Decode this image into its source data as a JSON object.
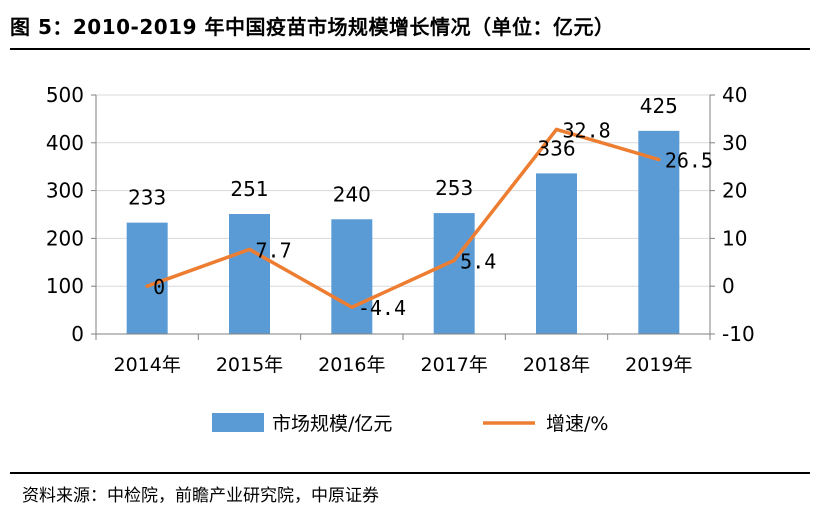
{
  "figure": {
    "title": "图 5：2010-2019 年中国疫苗市场规模增长情况（单位：亿元）",
    "source": "资料来源：中检院，前瞻产业研究院，中原证券"
  },
  "chart_data": {
    "type": "bar+line",
    "categories": [
      "2014年",
      "2015年",
      "2016年",
      "2017年",
      "2018年",
      "2019年"
    ],
    "series": [
      {
        "name": "市场规模/亿元",
        "type": "bar",
        "axis": "left",
        "color": "#5B9BD5",
        "values": [
          233,
          251,
          240,
          253,
          336,
          425
        ],
        "labels": [
          "233",
          "251",
          "240",
          "253",
          "336",
          "425"
        ]
      },
      {
        "name": "增速/%",
        "type": "line",
        "axis": "right",
        "color": "#ED7D31",
        "values": [
          0,
          7.7,
          -4.4,
          5.4,
          32.8,
          26.5
        ],
        "labels": [
          "0",
          "7.7",
          "-4.4",
          "5.4",
          "32.8",
          "26.5"
        ]
      }
    ],
    "y_left": {
      "min": 0,
      "max": 500,
      "ticks": [
        0,
        100,
        200,
        300,
        400,
        500
      ],
      "tick_labels": [
        "0",
        "100",
        "200",
        "300",
        "400",
        "500"
      ]
    },
    "y_right": {
      "min": -10,
      "max": 40,
      "ticks": [
        -10,
        0,
        10,
        20,
        30,
        40
      ],
      "tick_labels": [
        "-10",
        "0",
        "10",
        "20",
        "30",
        "40"
      ]
    },
    "grid": true,
    "legend_position": "bottom"
  }
}
